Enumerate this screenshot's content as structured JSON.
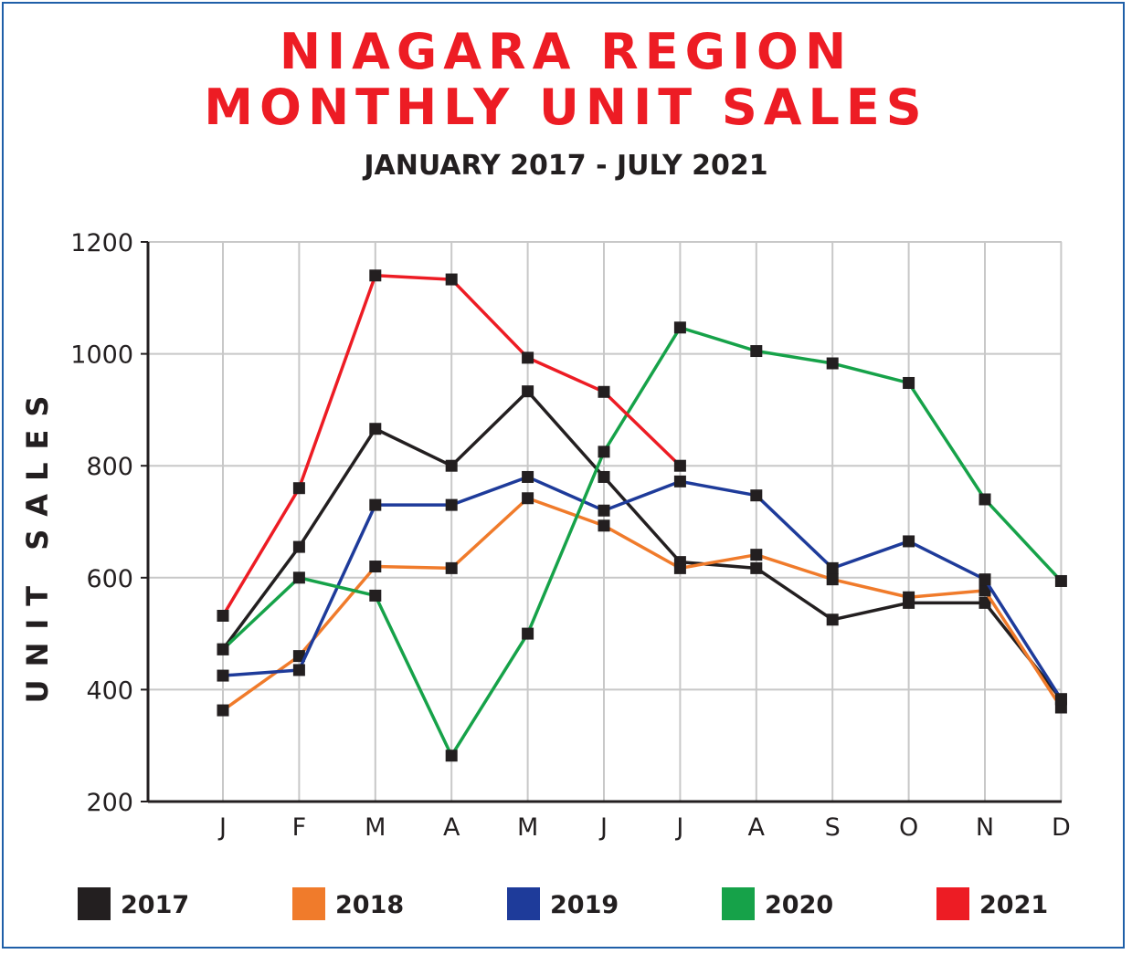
{
  "chart_data": {
    "type": "line",
    "title_line1": "NIAGARA REGION",
    "title_line2": "MONTHLY UNIT SALES",
    "subtitle": "JANUARY 2017 - JULY 2021",
    "ylabel": "UNIT SALES",
    "xlabel": "",
    "ylim": [
      200,
      1200
    ],
    "yticks": [
      200,
      400,
      600,
      800,
      1000,
      1200
    ],
    "grid": true,
    "legend_position": "bottom",
    "categories": [
      "J",
      "F",
      "M",
      "A",
      "M",
      "J",
      "J",
      "A",
      "S",
      "O",
      "N",
      "D"
    ],
    "series": [
      {
        "name": "2017",
        "color": "#231f20",
        "values": [
          472,
          655,
          866,
          800,
          933,
          780,
          628,
          617,
          525,
          555,
          555,
          383
        ]
      },
      {
        "name": "2018",
        "color": "#f07b2b",
        "values": [
          363,
          460,
          620,
          617,
          742,
          693,
          617,
          641,
          597,
          565,
          577,
          368
        ]
      },
      {
        "name": "2019",
        "color": "#1e3b9a",
        "values": [
          425,
          435,
          730,
          730,
          780,
          720,
          772,
          747,
          617,
          665,
          597,
          383
        ]
      },
      {
        "name": "2020",
        "color": "#16a249",
        "values": [
          472,
          600,
          568,
          282,
          500,
          825,
          1047,
          1005,
          983,
          948,
          740,
          594
        ]
      },
      {
        "name": "2021",
        "color": "#ed1c24",
        "values": [
          532,
          760,
          1140,
          1133,
          993,
          932,
          800,
          null,
          null,
          null,
          null,
          null
        ]
      }
    ]
  }
}
